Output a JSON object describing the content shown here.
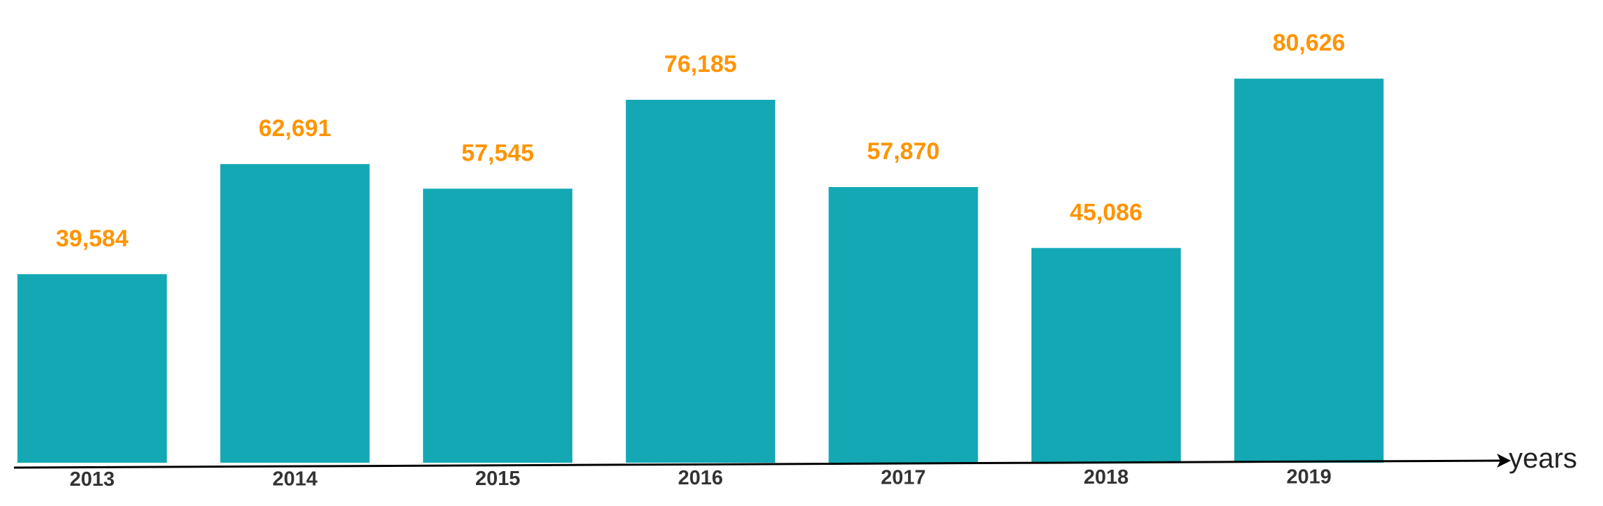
{
  "chart_data": {
    "type": "bar",
    "title": "",
    "xlabel": "years",
    "ylabel": "",
    "categories": [
      "2013",
      "2014",
      "2015",
      "2016",
      "2017",
      "2018",
      "2019"
    ],
    "values": [
      39584,
      62691,
      57545,
      76185,
      57870,
      45086,
      80626
    ],
    "value_labels": [
      "39,584",
      "62,691",
      "57,545",
      "76,185",
      "57,870",
      "45,086",
      "80,626"
    ],
    "ylim": [
      0,
      90000
    ],
    "grid": false,
    "legend": "none",
    "colors": {
      "bar": "#14A8B5",
      "value_label": "#FF9400",
      "axis": "#000000"
    }
  }
}
